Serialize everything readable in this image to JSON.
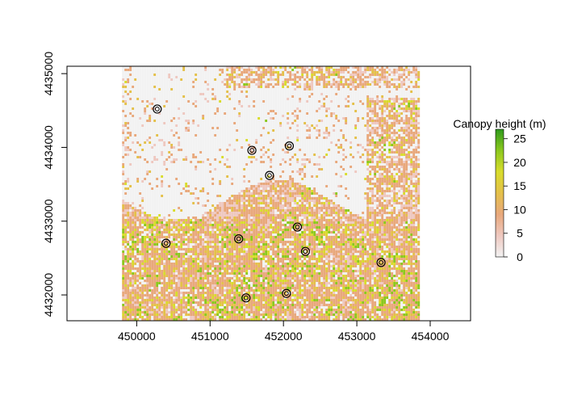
{
  "chart_data": {
    "type": "heatmap",
    "xlim": [
      449050,
      454550
    ],
    "ylim": [
      4431650,
      4435100
    ],
    "x_ticks": [
      450000,
      451000,
      452000,
      453000,
      454000
    ],
    "y_ticks": [
      4432000,
      4433000,
      4434000,
      4435000
    ],
    "x_tick_labels": [
      "450000",
      "451000",
      "452000",
      "453000",
      "454000"
    ],
    "y_tick_labels": [
      "4432000",
      "4433000",
      "4434000",
      "4435000"
    ],
    "raster_extent": {
      "xmin": 449800,
      "xmax": 453850,
      "ymin": 4431650,
      "ymax": 4435100
    },
    "legend": {
      "title": "Canopy height (m)",
      "min": 0,
      "max": 27,
      "ticks": [
        0,
        5,
        10,
        15,
        20,
        25
      ],
      "tick_labels": [
        "0",
        "5",
        "10",
        "15",
        "20",
        "25"
      ],
      "colors": [
        "#f2f2f2",
        "#eec8c0",
        "#e8a87c",
        "#e4c04a",
        "#d8dc2c",
        "#8cc81e",
        "#2e9a1c"
      ]
    },
    "points": [
      {
        "x": 450280,
        "y": 4434520
      },
      {
        "x": 451570,
        "y": 4433960
      },
      {
        "x": 452080,
        "y": 4434020
      },
      {
        "x": 451810,
        "y": 4433620
      },
      {
        "x": 450400,
        "y": 4432700
      },
      {
        "x": 451390,
        "y": 4432760
      },
      {
        "x": 452190,
        "y": 4432920
      },
      {
        "x": 452300,
        "y": 4432590
      },
      {
        "x": 453330,
        "y": 4432440
      },
      {
        "x": 451490,
        "y": 4431960
      },
      {
        "x": 452040,
        "y": 4432020
      }
    ]
  }
}
